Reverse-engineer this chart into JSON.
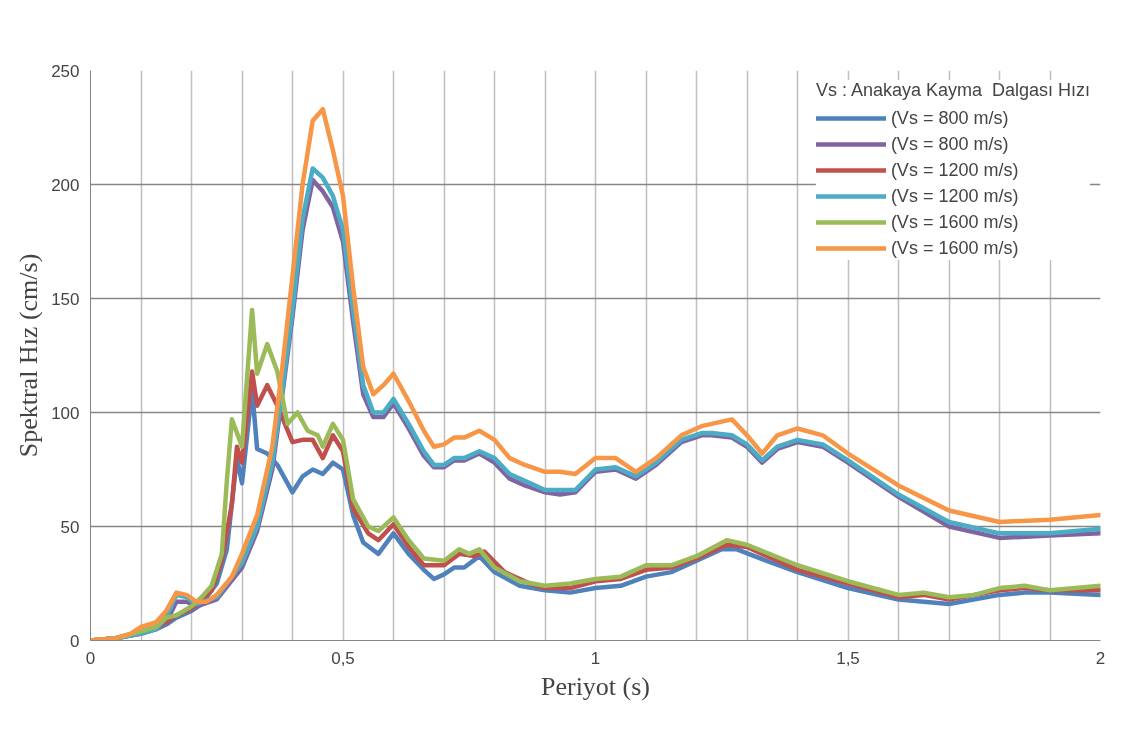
{
  "chart_data": {
    "type": "line",
    "xlabel": "Periyot (s)",
    "ylabel": "Spektral Hız (cm/s)",
    "legend_title": "Vs : Anakaya Kayma  Dalgası Hızı",
    "legend": "top right",
    "grid": true,
    "marker": "none",
    "line_style": "solid",
    "xlim": [
      0,
      2
    ],
    "ylim": [
      0,
      250
    ],
    "xticks": [
      0,
      {
        "value": 0.1,
        "label": null
      },
      {
        "value": 0.2,
        "label": null
      },
      {
        "value": 0.3,
        "label": null
      },
      {
        "value": 0.4,
        "label": null
      },
      {
        "value": 0.5,
        "label": "0,5"
      },
      {
        "value": 0.6,
        "label": null
      },
      {
        "value": 0.7,
        "label": null
      },
      {
        "value": 0.8,
        "label": null
      },
      {
        "value": 0.9,
        "label": null
      },
      1,
      {
        "value": 1.1,
        "label": null
      },
      {
        "value": 1.2,
        "label": null
      },
      {
        "value": 1.3,
        "label": null
      },
      {
        "value": 1.4,
        "label": null
      },
      {
        "value": 1.5,
        "label": "1,5"
      },
      {
        "value": 1.6,
        "label": null
      },
      {
        "value": 1.7,
        "label": null
      },
      {
        "value": 1.8,
        "label": null
      },
      {
        "value": 1.9,
        "label": null
      },
      2
    ],
    "yticks": [
      0,
      50,
      100,
      150,
      200,
      250
    ],
    "series": [
      {
        "name": "(Vs = 800 m/s)",
        "color": "#4f81bd",
        "x": [
          0,
          0.05,
          0.1,
          0.13,
          0.15,
          0.17,
          0.2,
          0.22,
          0.25,
          0.27,
          0.29,
          0.3,
          0.32,
          0.33,
          0.35,
          0.37,
          0.4,
          0.42,
          0.44,
          0.46,
          0.48,
          0.5,
          0.52,
          0.54,
          0.57,
          0.6,
          0.63,
          0.66,
          0.68,
          0.7,
          0.72,
          0.74,
          0.77,
          0.8,
          0.85,
          0.9,
          0.95,
          1.0,
          1.05,
          1.1,
          1.15,
          1.2,
          1.25,
          1.28,
          1.35,
          1.4,
          1.5,
          1.6,
          1.7,
          1.8,
          1.85,
          1.9,
          2.0
        ],
        "values": [
          0,
          1,
          3,
          5,
          7,
          10,
          13,
          16,
          25,
          40,
          80,
          69,
          110,
          84,
          82,
          77,
          65,
          72,
          75,
          73,
          78,
          75,
          55,
          43,
          38,
          47,
          38,
          31,
          27,
          29,
          32,
          32,
          37,
          30,
          24,
          22,
          21,
          23,
          24,
          28,
          30,
          35,
          40,
          40,
          34,
          30,
          23,
          18,
          16,
          20,
          21,
          21,
          20
        ]
      },
      {
        "name": "(Vs = 800 m/s)",
        "color": "#8064a2",
        "x": [
          0,
          0.05,
          0.1,
          0.13,
          0.15,
          0.17,
          0.19,
          0.21,
          0.25,
          0.3,
          0.33,
          0.36,
          0.38,
          0.4,
          0.42,
          0.44,
          0.46,
          0.48,
          0.5,
          0.52,
          0.54,
          0.56,
          0.58,
          0.6,
          0.63,
          0.66,
          0.68,
          0.7,
          0.72,
          0.74,
          0.77,
          0.8,
          0.83,
          0.86,
          0.9,
          0.93,
          0.96,
          1.0,
          1.04,
          1.08,
          1.12,
          1.17,
          1.21,
          1.23,
          1.27,
          1.3,
          1.33,
          1.36,
          1.4,
          1.45,
          1.5,
          1.6,
          1.7,
          1.8,
          1.9,
          2.0
        ],
        "values": [
          0,
          1,
          3,
          5,
          8,
          17,
          17,
          15,
          18,
          32,
          48,
          75,
          108,
          142,
          180,
          202,
          197,
          190,
          175,
          140,
          108,
          98,
          98,
          104,
          93,
          81,
          76,
          76,
          79,
          79,
          82,
          78,
          71,
          68,
          65,
          64,
          65,
          74,
          75,
          71,
          77,
          87,
          90,
          90,
          89,
          85,
          78,
          84,
          87,
          85,
          78,
          63,
          50,
          45,
          46,
          47
        ]
      },
      {
        "name": "(Vs = 1200 m/s)",
        "color": "#c0504d",
        "x": [
          0,
          0.05,
          0.1,
          0.13,
          0.15,
          0.17,
          0.2,
          0.22,
          0.24,
          0.26,
          0.28,
          0.29,
          0.3,
          0.32,
          0.33,
          0.35,
          0.37,
          0.4,
          0.42,
          0.44,
          0.46,
          0.48,
          0.5,
          0.52,
          0.55,
          0.57,
          0.6,
          0.63,
          0.66,
          0.7,
          0.73,
          0.76,
          0.78,
          0.82,
          0.87,
          0.9,
          0.95,
          1.0,
          1.05,
          1.1,
          1.15,
          1.2,
          1.26,
          1.3,
          1.4,
          1.5,
          1.6,
          1.65,
          1.7,
          1.8,
          1.85,
          1.9,
          2.0
        ],
        "values": [
          0,
          1,
          4,
          6,
          8,
          11,
          14,
          18,
          22,
          35,
          60,
          85,
          78,
          118,
          103,
          112,
          103,
          87,
          88,
          88,
          80,
          90,
          83,
          58,
          47,
          44,
          51,
          41,
          33,
          33,
          38,
          37,
          39,
          30,
          25,
          23,
          23,
          26,
          27,
          31,
          32,
          36,
          42,
          41,
          31,
          25,
          19,
          20,
          18,
          22,
          23,
          22,
          22
        ]
      },
      {
        "name": "(Vs = 1200 m/s)",
        "color": "#4bacc6",
        "x": [
          0,
          0.05,
          0.1,
          0.13,
          0.15,
          0.17,
          0.19,
          0.21,
          0.25,
          0.3,
          0.33,
          0.36,
          0.38,
          0.4,
          0.42,
          0.44,
          0.46,
          0.48,
          0.5,
          0.52,
          0.54,
          0.56,
          0.58,
          0.6,
          0.63,
          0.66,
          0.68,
          0.7,
          0.72,
          0.74,
          0.77,
          0.8,
          0.83,
          0.86,
          0.9,
          0.93,
          0.96,
          1.0,
          1.04,
          1.08,
          1.12,
          1.17,
          1.21,
          1.23,
          1.27,
          1.3,
          1.33,
          1.36,
          1.4,
          1.45,
          1.5,
          1.6,
          1.7,
          1.8,
          1.9,
          2.0
        ],
        "values": [
          0,
          1,
          3,
          5,
          10,
          20,
          19,
          16,
          19,
          34,
          50,
          78,
          110,
          145,
          185,
          207,
          203,
          195,
          180,
          145,
          112,
          100,
          100,
          106,
          95,
          83,
          77,
          77,
          80,
          80,
          83,
          80,
          73,
          70,
          66,
          66,
          66,
          75,
          76,
          72,
          78,
          88,
          91,
          91,
          90,
          86,
          79,
          85,
          88,
          86,
          79,
          64,
          52,
          47,
          47,
          49
        ]
      },
      {
        "name": "(Vs = 1600 m/s)",
        "color": "#9bbb59",
        "x": [
          0,
          0.05,
          0.1,
          0.13,
          0.15,
          0.17,
          0.2,
          0.22,
          0.24,
          0.26,
          0.27,
          0.28,
          0.3,
          0.32,
          0.33,
          0.35,
          0.37,
          0.39,
          0.41,
          0.43,
          0.45,
          0.46,
          0.48,
          0.5,
          0.52,
          0.55,
          0.57,
          0.6,
          0.63,
          0.66,
          0.7,
          0.73,
          0.75,
          0.77,
          0.8,
          0.85,
          0.9,
          0.95,
          1.0,
          1.05,
          1.1,
          1.15,
          1.2,
          1.26,
          1.3,
          1.4,
          1.5,
          1.6,
          1.65,
          1.7,
          1.75,
          1.8,
          1.85,
          1.9,
          2.0
        ],
        "values": [
          0,
          1,
          4,
          6,
          10,
          11,
          15,
          19,
          24,
          38,
          70,
          97,
          85,
          145,
          117,
          130,
          118,
          95,
          100,
          92,
          90,
          85,
          95,
          88,
          62,
          50,
          48,
          54,
          44,
          36,
          35,
          40,
          38,
          40,
          32,
          26,
          24,
          25,
          27,
          28,
          33,
          33,
          37,
          44,
          42,
          33,
          26,
          20,
          21,
          19,
          20,
          23,
          24,
          22,
          24
        ]
      },
      {
        "name": "(Vs = 1600 m/s)",
        "color": "#f79646",
        "x": [
          0,
          0.05,
          0.08,
          0.1,
          0.13,
          0.15,
          0.17,
          0.19,
          0.21,
          0.23,
          0.25,
          0.28,
          0.3,
          0.33,
          0.36,
          0.38,
          0.4,
          0.42,
          0.44,
          0.46,
          0.48,
          0.5,
          0.52,
          0.54,
          0.56,
          0.58,
          0.6,
          0.63,
          0.66,
          0.68,
          0.7,
          0.72,
          0.74,
          0.77,
          0.8,
          0.83,
          0.86,
          0.9,
          0.93,
          0.96,
          1.0,
          1.04,
          1.08,
          1.12,
          1.17,
          1.21,
          1.23,
          1.27,
          1.3,
          1.33,
          1.36,
          1.4,
          1.45,
          1.5,
          1.6,
          1.7,
          1.8,
          1.9,
          2.0
        ],
        "values": [
          0,
          1,
          3,
          6,
          8,
          13,
          21,
          20,
          17,
          17,
          20,
          28,
          38,
          55,
          85,
          120,
          160,
          200,
          228,
          233,
          215,
          195,
          155,
          120,
          108,
          112,
          117,
          105,
          92,
          85,
          86,
          89,
          89,
          92,
          88,
          80,
          77,
          74,
          74,
          73,
          80,
          80,
          74,
          80,
          90,
          94,
          95,
          97,
          90,
          82,
          90,
          93,
          90,
          82,
          68,
          57,
          52,
          53,
          55
        ]
      }
    ]
  }
}
